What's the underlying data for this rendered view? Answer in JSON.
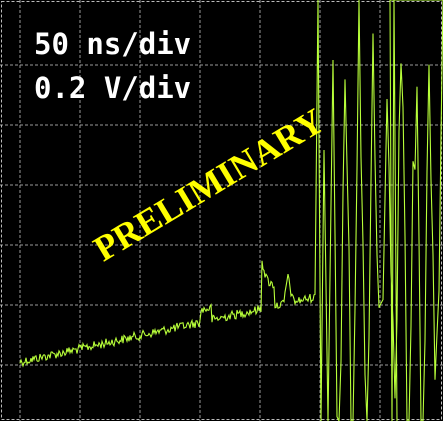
{
  "scope": {
    "time_scale": "50 ns/div",
    "voltage_scale": "0.2 V/div",
    "stamp": "PRELIMINARY"
  }
}
